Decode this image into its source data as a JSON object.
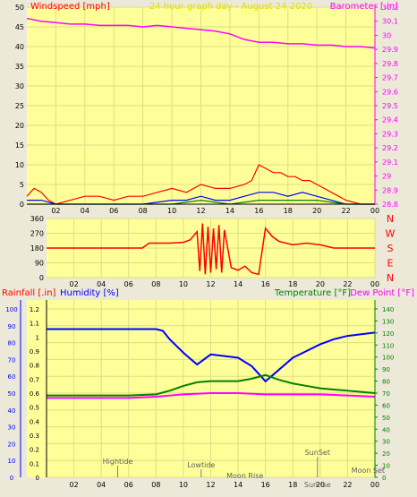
{
  "chart_data": [
    {
      "type": "line",
      "title": "24 hour graph day - August 24 2020",
      "ylabel_left": "Windspeed [mph]",
      "ylabel_right": "Barometer [.in]",
      "xlabels": [
        "02",
        "04",
        "06",
        "08",
        "10",
        "12",
        "14",
        "16",
        "18",
        "20",
        "22",
        "00"
      ],
      "yticks_left": [
        "0",
        "5",
        "10",
        "15",
        "20",
        "25",
        "30",
        "35",
        "40",
        "45",
        "50"
      ],
      "yticks_right": [
        "28.8",
        "28.9",
        "29",
        "29.1",
        "29.2",
        "29.3",
        "29.4",
        "29.5",
        "29.6",
        "29.7",
        "29.8",
        "29.9",
        "30",
        "30.1",
        "30.2"
      ],
      "ylim_left": [
        0,
        50
      ],
      "ylim_right": [
        28.8,
        30.2
      ],
      "xlim_hours": [
        0,
        24
      ],
      "grid": true,
      "series": [
        {
          "name": "Windspeed [mph]",
          "axis": "right-hidden",
          "color": "#ff00ff",
          "role": "barometer",
          "x": [
            0,
            1,
            2,
            3,
            4,
            5,
            6,
            7,
            8,
            9,
            10,
            11,
            12,
            13,
            14,
            15,
            16,
            17,
            18,
            19,
            20,
            21,
            22,
            23,
            24
          ],
          "y": [
            30.12,
            30.1,
            30.09,
            30.08,
            30.08,
            30.07,
            30.07,
            30.07,
            30.06,
            30.07,
            30.06,
            30.05,
            30.04,
            30.03,
            30.01,
            29.97,
            29.95,
            29.95,
            29.94,
            29.94,
            29.93,
            29.93,
            29.92,
            29.92,
            29.91
          ]
        },
        {
          "name": "gust",
          "color": "#ff0000",
          "x": [
            0,
            0.5,
            1,
            1.5,
            2,
            3,
            4,
            5,
            6,
            7,
            8,
            9,
            10,
            11,
            12,
            13,
            14,
            15,
            15.5,
            16,
            16.5,
            17,
            17.5,
            18,
            18.5,
            19,
            19.5,
            20,
            20.5,
            21,
            21.5,
            22,
            23,
            24
          ],
          "y": [
            2,
            4,
            3,
            1,
            0,
            1,
            2,
            2,
            1,
            2,
            2,
            3,
            4,
            3,
            5,
            4,
            4,
            5,
            6,
            10,
            9,
            8,
            8,
            7,
            7,
            6,
            6,
            5,
            4,
            3,
            2,
            1,
            0,
            0
          ]
        },
        {
          "name": "average",
          "color": "#0000ff",
          "x": [
            0,
            1,
            2,
            4,
            6,
            8,
            10,
            11,
            12,
            13,
            14,
            15,
            16,
            17,
            18,
            19,
            20,
            21,
            22,
            24
          ],
          "y": [
            1,
            1,
            0,
            0,
            0,
            0,
            1,
            1,
            2,
            1,
            1,
            2,
            3,
            3,
            2,
            3,
            2,
            1,
            0,
            0
          ]
        },
        {
          "name": "low",
          "color": "#008000",
          "x": [
            0,
            4,
            8,
            10,
            12,
            14,
            16,
            18,
            20,
            22,
            24
          ],
          "y": [
            0,
            0,
            0,
            0,
            1,
            0,
            1,
            1,
            1,
            0,
            0
          ]
        }
      ]
    },
    {
      "type": "line",
      "ylabel_right": [
        "N",
        "W",
        "S",
        "E",
        "N"
      ],
      "yticks_left": [
        "360",
        "270",
        "180",
        "90",
        "0"
      ],
      "xlabels": [
        "02",
        "04",
        "06",
        "08",
        "10",
        "12",
        "14",
        "16",
        "18",
        "20",
        "22",
        "00"
      ],
      "ylim": [
        0,
        360
      ],
      "grid": true,
      "series": [
        {
          "name": "direction",
          "color": "#ff0000",
          "x": [
            0,
            1,
            2,
            3,
            4,
            5,
            6,
            7,
            7.5,
            8,
            9,
            10,
            10.5,
            11,
            11.2,
            11.4,
            11.6,
            11.8,
            12,
            12.2,
            12.4,
            12.6,
            12.8,
            13,
            13.5,
            14,
            14.5,
            15,
            15.5,
            16,
            16.5,
            17,
            18,
            19,
            20,
            21,
            22,
            23,
            24
          ],
          "y": [
            180,
            180,
            180,
            180,
            180,
            180,
            180,
            180,
            210,
            210,
            210,
            215,
            230,
            280,
            40,
            330,
            20,
            310,
            30,
            300,
            50,
            320,
            30,
            290,
            60,
            45,
            70,
            30,
            20,
            300,
            250,
            220,
            200,
            210,
            200,
            180,
            180,
            180,
            180
          ]
        }
      ]
    },
    {
      "type": "line",
      "ylabel_left": "Rainfall [.in]",
      "ylabel_left2": "Humidity [%]",
      "ylabel_right": "Temperature [°F]",
      "ylabel_right2": "Dew Point [°F]",
      "yticks_rain": [
        "0",
        "0.1",
        "0.2",
        "0.3",
        "0.4",
        "0.5",
        "0.6",
        "0.7",
        "0.8",
        "0.9",
        "1",
        "1.1",
        "1.2"
      ],
      "yticks_hum": [
        "0",
        "10",
        "20",
        "30",
        "40",
        "50",
        "60",
        "70",
        "80",
        "90",
        "100"
      ],
      "yticks_temp": [
        "0",
        "10",
        "20",
        "30",
        "40",
        "50",
        "60",
        "70",
        "80",
        "90",
        "100",
        "110",
        "120",
        "130",
        "140"
      ],
      "xlabels": [
        "02",
        "04",
        "06",
        "08",
        "10",
        "12",
        "14",
        "16",
        "18",
        "20",
        "22",
        "00"
      ],
      "ylim_humidity": [
        0,
        100
      ],
      "ylim_temperature": [
        0,
        140
      ],
      "annotations": [
        "Hightide",
        "Lowtide",
        "Moon Rise",
        "SunSet",
        "Moon Set",
        "Sunrise"
      ],
      "series": [
        {
          "name": "Humidity [%]",
          "color": "#0000ff",
          "x": [
            0,
            2,
            4,
            6,
            8,
            8.5,
            9,
            10,
            11,
            12,
            13,
            14,
            15,
            16,
            17,
            18,
            19,
            20,
            21,
            22,
            23,
            24
          ],
          "y": [
            88,
            88,
            88,
            88,
            88,
            87,
            82,
            74,
            67,
            73,
            72,
            71,
            66,
            57,
            64,
            71,
            75,
            79,
            82,
            84,
            85,
            86
          ]
        },
        {
          "name": "Temperature [°F]",
          "color": "#008000",
          "x": [
            0,
            2,
            4,
            6,
            8,
            9,
            10,
            11,
            12,
            13,
            14,
            15,
            16,
            17,
            18,
            19,
            20,
            21,
            22,
            23,
            24
          ],
          "y": [
            68,
            68,
            68,
            68,
            69,
            72,
            76,
            79,
            80,
            80,
            80,
            82,
            85,
            81,
            78,
            76,
            74,
            73,
            72,
            71,
            70
          ]
        },
        {
          "name": "Dew Point [°F]",
          "color": "#ff00ff",
          "x": [
            0,
            2,
            4,
            6,
            8,
            9,
            10,
            12,
            14,
            16,
            18,
            20,
            22,
            24
          ],
          "y": [
            66,
            66,
            66,
            66,
            67,
            68,
            69,
            70,
            70,
            69,
            69,
            69,
            68,
            67
          ]
        }
      ]
    }
  ]
}
